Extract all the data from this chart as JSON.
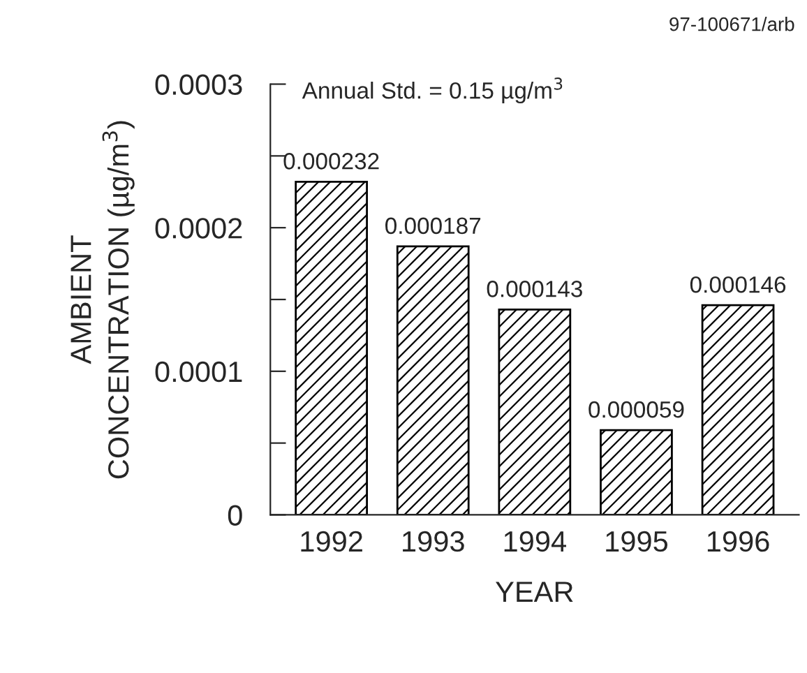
{
  "chart_data": {
    "type": "bar",
    "categories": [
      "1992",
      "1993",
      "1994",
      "1995",
      "1996"
    ],
    "values": [
      0.000232,
      0.000187,
      0.000143,
      5.9e-05,
      0.000146
    ],
    "value_labels": [
      "0.000232",
      "0.000187",
      "0.000143",
      "0.000059",
      "0.000146"
    ],
    "color": "#000000",
    "xlabel": "YEAR",
    "ylabel": "AMBIENT\nCONCENTRATION (µg/m$^{3}$)",
    "ylim": [
      0,
      0.0003
    ],
    "yticks": [
      0,
      {
        "value": 5e-05,
        "label": null
      },
      0.0001,
      {
        "value": 0.00015,
        "label": null
      },
      0.0002,
      {
        "value": 0.00025,
        "label": null
      },
      0.0003
    ],
    "annotations": [
      "97-100671/arb",
      "Annual Std. = 0.15 µg/m$^{3}$"
    ],
    "grid": false,
    "legend": false
  }
}
